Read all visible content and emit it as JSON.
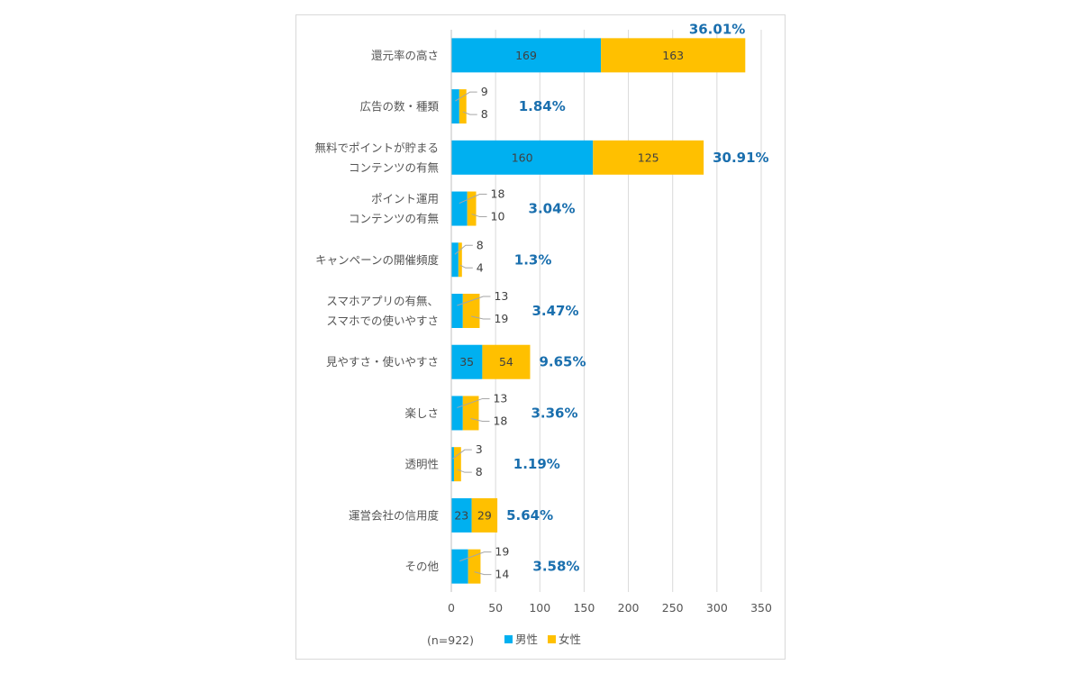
{
  "chart_data": {
    "type": "bar",
    "orientation": "horizontal",
    "stacked": true,
    "categories": [
      [
        "還元率の高さ"
      ],
      [
        "広告の数・種類"
      ],
      [
        "無料でポイントが貯まる",
        "コンテンツの有無"
      ],
      [
        "ポイント運用",
        "コンテンツの有無"
      ],
      [
        "キャンペーンの開催頻度"
      ],
      [
        "スマホアプリの有無、",
        "スマホでの使いやすさ"
      ],
      [
        "見やすさ・使いやすさ"
      ],
      [
        "楽しさ"
      ],
      [
        "透明性"
      ],
      [
        "運営会社の信用度"
      ],
      [
        "その他"
      ]
    ],
    "series": [
      {
        "name": "男性",
        "color": "#00b0f0",
        "values": [
          169,
          9,
          160,
          18,
          8,
          13,
          35,
          13,
          3,
          23,
          19
        ]
      },
      {
        "name": "女性",
        "color": "#ffc000",
        "values": [
          163,
          8,
          125,
          10,
          4,
          19,
          54,
          18,
          8,
          29,
          14
        ]
      }
    ],
    "percent_labels": [
      "36.01%",
      "1.84%",
      "30.91%",
      "3.04%",
      "1.3%",
      "3.47%",
      "9.65%",
      "3.36%",
      "1.19%",
      "5.64%",
      "3.58%"
    ],
    "xlim": [
      0,
      350
    ],
    "xticks": [
      0,
      50,
      100,
      150,
      200,
      250,
      300,
      350
    ],
    "grid": true,
    "legend_position": "bottom",
    "note": "(n=922)"
  }
}
